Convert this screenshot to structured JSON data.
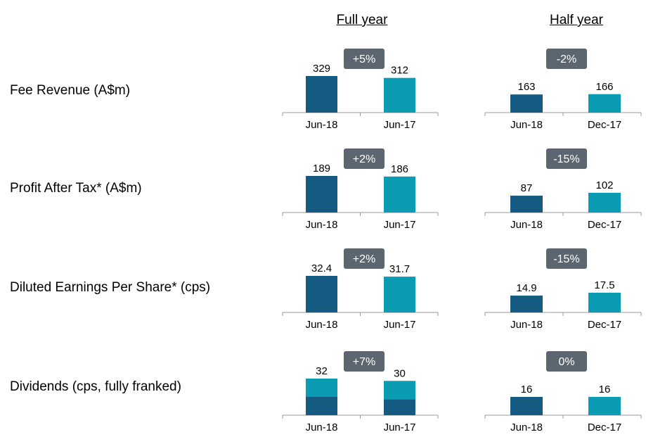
{
  "headers": {
    "full_year": "Full year",
    "half_year": "Half year"
  },
  "rows": [
    {
      "label": "Fee Revenue (A$m)"
    },
    {
      "label": "Profit After Tax* (A$m)"
    },
    {
      "label": "Diluted Earnings Per Share* (cps)"
    },
    {
      "label": "Dividends (cps, fully franked)"
    }
  ],
  "colors": {
    "current": "#155a80",
    "prior": "#0b9bb3",
    "badge": "#5c6670",
    "axis": "#999999"
  },
  "chart_data": [
    {
      "type": "bar",
      "row": "Fee Revenue (A$m)",
      "period": "Full year",
      "categories": [
        "Jun-18",
        "Jun-17"
      ],
      "values": [
        329,
        312
      ],
      "labels": [
        "329",
        "312"
      ],
      "change": "+5%"
    },
    {
      "type": "bar",
      "row": "Fee Revenue (A$m)",
      "period": "Half year",
      "categories": [
        "Jun-18",
        "Dec-17"
      ],
      "values": [
        163,
        166
      ],
      "labels": [
        "163",
        "166"
      ],
      "change": "-2%"
    },
    {
      "type": "bar",
      "row": "Profit After Tax* (A$m)",
      "period": "Full year",
      "categories": [
        "Jun-18",
        "Jun-17"
      ],
      "values": [
        189,
        186
      ],
      "labels": [
        "189",
        "186"
      ],
      "change": "+2%"
    },
    {
      "type": "bar",
      "row": "Profit After Tax* (A$m)",
      "period": "Half year",
      "categories": [
        "Jun-18",
        "Dec-17"
      ],
      "values": [
        87,
        102
      ],
      "labels": [
        "87",
        "102"
      ],
      "change": "-15%"
    },
    {
      "type": "bar",
      "row": "Diluted Earnings Per Share* (cps)",
      "period": "Full year",
      "categories": [
        "Jun-18",
        "Jun-17"
      ],
      "values": [
        32.4,
        31.7
      ],
      "labels": [
        "32.4",
        "31.7"
      ],
      "change": "+2%"
    },
    {
      "type": "bar",
      "row": "Diluted Earnings Per Share* (cps)",
      "period": "Half year",
      "categories": [
        "Jun-18",
        "Dec-17"
      ],
      "values": [
        14.9,
        17.5
      ],
      "labels": [
        "14.9",
        "17.5"
      ],
      "change": "-15%"
    },
    {
      "type": "bar",
      "stacked": true,
      "row": "Dividends (cps, fully franked)",
      "period": "Full year",
      "categories": [
        "Jun-18",
        "Jun-17"
      ],
      "series": [
        {
          "values": [
            16,
            14
          ]
        },
        {
          "values": [
            16,
            16
          ]
        }
      ],
      "values": [
        32,
        30
      ],
      "labels": [
        "32",
        "30"
      ],
      "change": "+7%"
    },
    {
      "type": "bar",
      "row": "Dividends (cps, fully franked)",
      "period": "Half year",
      "categories": [
        "Jun-18",
        "Dec-17"
      ],
      "values": [
        16,
        16
      ],
      "labels": [
        "16",
        "16"
      ],
      "change": "0%"
    }
  ]
}
